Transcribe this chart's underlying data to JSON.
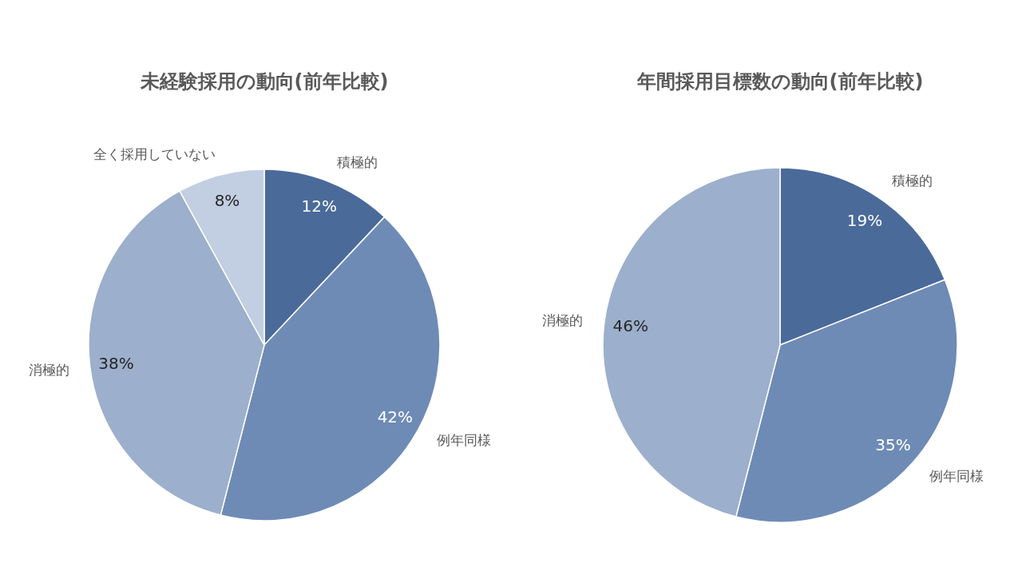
{
  "chart_data": [
    {
      "type": "pie",
      "title": "未経験採用の動向(前年比較)",
      "categories": [
        "積極的",
        "例年同様",
        "消極的",
        "全く採用していない"
      ],
      "values": [
        12,
        42,
        38,
        8
      ],
      "colors": [
        "#4a6a9a",
        "#6e8bb6",
        "#9cafcc",
        "#c2cee1"
      ],
      "value_labels": [
        "12%",
        "42%",
        "38%",
        "8%"
      ]
    },
    {
      "type": "pie",
      "title": "年間採用目標数の動向(前年比較)",
      "categories": [
        "積極的",
        "例年同様",
        "消極的"
      ],
      "values": [
        19,
        35,
        46
      ],
      "colors": [
        "#4a6a9a",
        "#6e8bb6",
        "#9cafcc"
      ],
      "value_labels": [
        "19%",
        "35%",
        "46%"
      ]
    }
  ]
}
